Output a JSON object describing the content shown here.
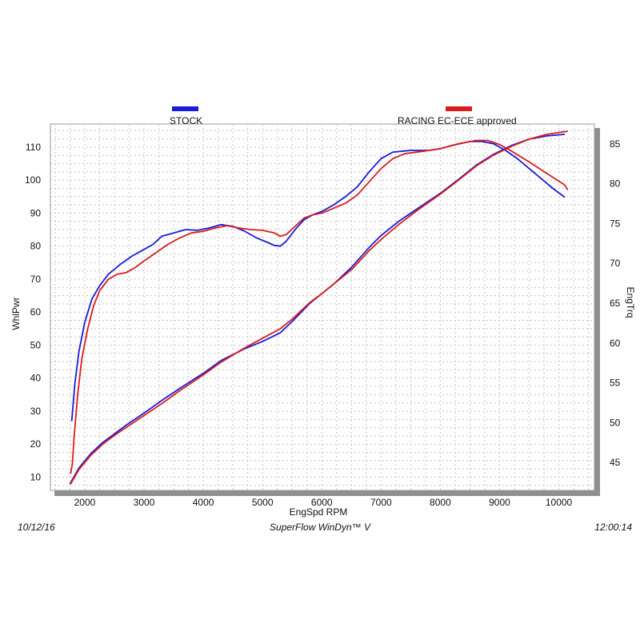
{
  "chart_data": {
    "type": "line",
    "xlabel": "EngSpd  RPM",
    "ylabel_left": "WhlPwr",
    "ylabel_right": "EngTrq",
    "xlim": [
      1420,
      10600
    ],
    "ylim_left": [
      6,
      117
    ],
    "ylim_right": [
      41.5,
      87.5
    ],
    "x_ticks": [
      2000,
      3000,
      4000,
      5000,
      6000,
      7000,
      8000,
      9000,
      10000
    ],
    "y_ticks_left": [
      10,
      20,
      30,
      40,
      50,
      60,
      70,
      80,
      90,
      100,
      110
    ],
    "y_ticks_right": [
      45,
      50,
      55,
      60,
      65,
      70,
      75,
      80,
      85
    ],
    "grid": true,
    "legend_position": "top",
    "series": [
      {
        "name": "STOCK",
        "color": "#1a1adb",
        "power": [
          [
            1780,
            27
          ],
          [
            1830,
            38
          ],
          [
            1900,
            48
          ],
          [
            2000,
            57
          ],
          [
            2120,
            64
          ],
          [
            2250,
            68
          ],
          [
            2400,
            71.5
          ],
          [
            2600,
            74.5
          ],
          [
            2800,
            77
          ],
          [
            3000,
            79
          ],
          [
            3150,
            80.5
          ],
          [
            3300,
            83
          ],
          [
            3500,
            84
          ],
          [
            3700,
            85
          ],
          [
            3900,
            84.8
          ],
          [
            4100,
            85.5
          ],
          [
            4300,
            86.5
          ],
          [
            4500,
            86
          ],
          [
            4700,
            84.5
          ],
          [
            4900,
            82.5
          ],
          [
            5100,
            81
          ],
          [
            5200,
            80.2
          ],
          [
            5300,
            80
          ],
          [
            5400,
            81.5
          ],
          [
            5550,
            85
          ],
          [
            5700,
            88
          ],
          [
            5850,
            89.5
          ],
          [
            6000,
            90.5
          ],
          [
            6200,
            92.5
          ],
          [
            6400,
            95
          ],
          [
            6600,
            98
          ],
          [
            6800,
            102.5
          ],
          [
            7000,
            106.5
          ],
          [
            7200,
            108.5
          ],
          [
            7500,
            109
          ],
          [
            7800,
            109
          ],
          [
            8000,
            109.5
          ],
          [
            8200,
            110.5
          ],
          [
            8500,
            111.7
          ],
          [
            8700,
            111.7
          ],
          [
            8900,
            111
          ],
          [
            9100,
            109
          ],
          [
            9300,
            106.5
          ],
          [
            9500,
            103.5
          ],
          [
            9700,
            100.5
          ],
          [
            9900,
            97.5
          ],
          [
            10100,
            94.8
          ]
        ],
        "torque": [
          [
            1750,
            42.3
          ],
          [
            1900,
            44.3
          ],
          [
            2100,
            46.1
          ],
          [
            2300,
            47.5
          ],
          [
            2500,
            48.6
          ],
          [
            2700,
            49.7
          ],
          [
            3000,
            51.2
          ],
          [
            3300,
            52.8
          ],
          [
            3600,
            54.3
          ],
          [
            4000,
            56.2
          ],
          [
            4300,
            57.8
          ],
          [
            4700,
            59.3
          ],
          [
            5000,
            60.2
          ],
          [
            5300,
            61.3
          ],
          [
            5500,
            62.7
          ],
          [
            5800,
            65
          ],
          [
            6000,
            66.2
          ],
          [
            6200,
            67.4
          ],
          [
            6500,
            69.5
          ],
          [
            6800,
            72
          ],
          [
            7000,
            73.5
          ],
          [
            7300,
            75.3
          ],
          [
            7600,
            76.8
          ],
          [
            8000,
            78.8
          ],
          [
            8300,
            80.5
          ],
          [
            8600,
            82.3
          ],
          [
            8900,
            83.7
          ],
          [
            9200,
            84.8
          ],
          [
            9500,
            85.6
          ],
          [
            9800,
            86
          ],
          [
            10100,
            86.2
          ]
        ]
      },
      {
        "name": "RACING EC-ECE approved",
        "color": "#d91c1c",
        "power": [
          [
            1760,
            11
          ],
          [
            1790,
            14
          ],
          [
            1820,
            22
          ],
          [
            1880,
            35
          ],
          [
            1950,
            46
          ],
          [
            2050,
            55
          ],
          [
            2150,
            62
          ],
          [
            2250,
            66.5
          ],
          [
            2400,
            70
          ],
          [
            2550,
            71.5
          ],
          [
            2700,
            72
          ],
          [
            2850,
            73.5
          ],
          [
            3000,
            75.5
          ],
          [
            3200,
            78
          ],
          [
            3400,
            80.5
          ],
          [
            3600,
            82.5
          ],
          [
            3800,
            84
          ],
          [
            4000,
            84.5
          ],
          [
            4200,
            85.5
          ],
          [
            4400,
            86.2
          ],
          [
            4600,
            85.5
          ],
          [
            4800,
            85
          ],
          [
            5000,
            84.8
          ],
          [
            5200,
            84
          ],
          [
            5300,
            83
          ],
          [
            5400,
            83.5
          ],
          [
            5550,
            86
          ],
          [
            5700,
            88.5
          ],
          [
            5850,
            89.5
          ],
          [
            6000,
            90
          ],
          [
            6200,
            91.5
          ],
          [
            6400,
            93
          ],
          [
            6600,
            95.5
          ],
          [
            6800,
            99.5
          ],
          [
            7000,
            103.5
          ],
          [
            7200,
            106.5
          ],
          [
            7400,
            108
          ],
          [
            7700,
            108.7
          ],
          [
            8000,
            109.5
          ],
          [
            8300,
            111
          ],
          [
            8600,
            112
          ],
          [
            8800,
            112
          ],
          [
            9000,
            110.8
          ],
          [
            9200,
            108.8
          ],
          [
            9500,
            105.5
          ],
          [
            9800,
            102
          ],
          [
            10100,
            98.5
          ],
          [
            10150,
            97
          ]
        ],
        "torque": [
          [
            1760,
            42.3
          ],
          [
            1900,
            44.1
          ],
          [
            2100,
            45.9
          ],
          [
            2300,
            47.3
          ],
          [
            2500,
            48.4
          ],
          [
            2700,
            49.4
          ],
          [
            3000,
            50.9
          ],
          [
            3300,
            52.4
          ],
          [
            3600,
            54
          ],
          [
            4000,
            56
          ],
          [
            4300,
            57.6
          ],
          [
            4700,
            59.4
          ],
          [
            5000,
            60.6
          ],
          [
            5300,
            61.8
          ],
          [
            5500,
            63
          ],
          [
            5800,
            65.1
          ],
          [
            6000,
            66.2
          ],
          [
            6200,
            67.4
          ],
          [
            6500,
            69.2
          ],
          [
            6800,
            71.6
          ],
          [
            7000,
            73
          ],
          [
            7300,
            74.9
          ],
          [
            7600,
            76.6
          ],
          [
            8000,
            78.7
          ],
          [
            8300,
            80.4
          ],
          [
            8600,
            82.2
          ],
          [
            8900,
            83.6
          ],
          [
            9200,
            84.7
          ],
          [
            9500,
            85.6
          ],
          [
            9800,
            86.2
          ],
          [
            10150,
            86.6
          ]
        ]
      }
    ]
  },
  "footer": {
    "date": "10/12/16",
    "software": "SuperFlow WinDyn™ V",
    "time": "12:00:14"
  }
}
